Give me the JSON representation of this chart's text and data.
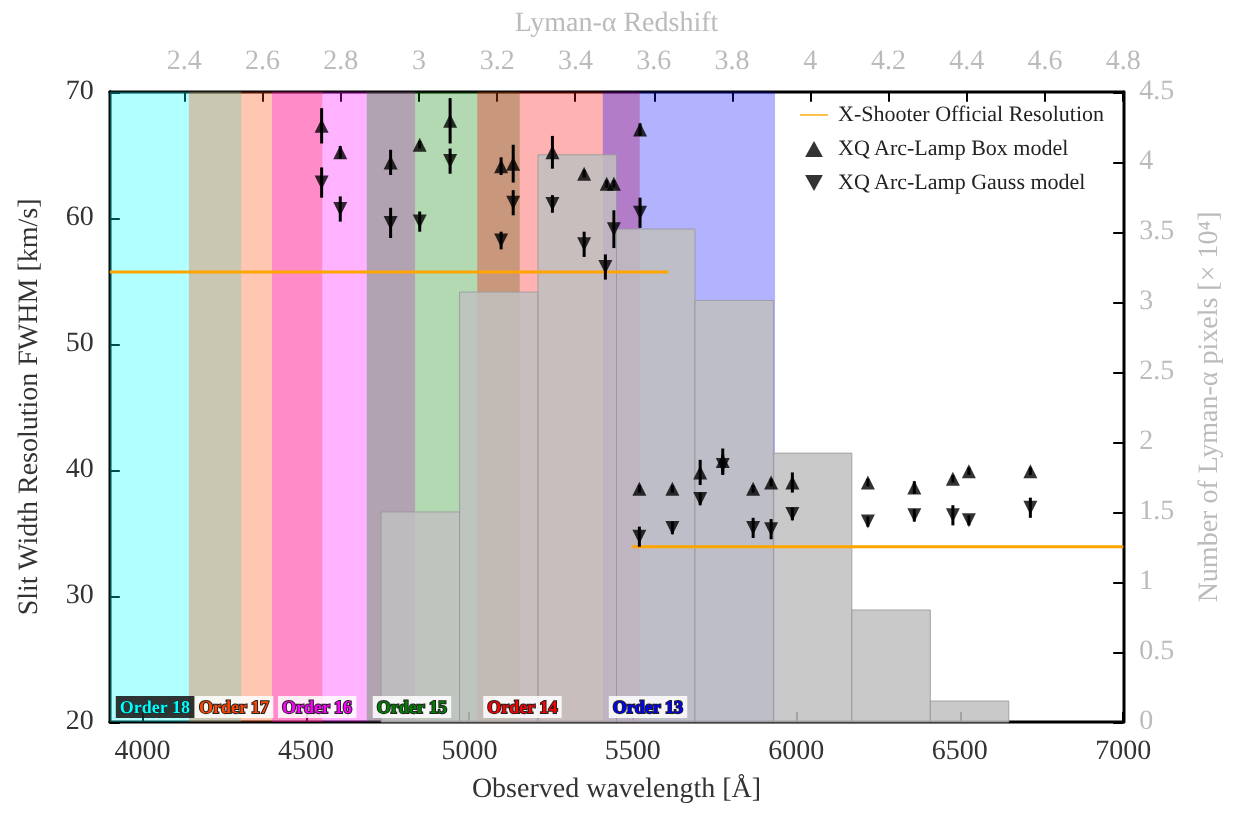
{
  "chart_data": {
    "type": "scatter",
    "xlabel": "Observed wavelength [Å]",
    "ylabel": "Slit Width Resolution FWHM [km/s]",
    "y2label": "Number of Lyman-α pixels [× 10⁴]",
    "x2label": "Lyman-α Redshift",
    "xlim": [
      3900,
      7000
    ],
    "xticks": [
      4000,
      4500,
      5000,
      5500,
      6000,
      6500,
      7000
    ],
    "ylim": [
      20,
      70
    ],
    "yticks": [
      20,
      30,
      40,
      50,
      60,
      70
    ],
    "y2lim": [
      0,
      4.5
    ],
    "y2ticks": [
      0,
      0.5,
      1,
      1.5,
      2,
      2.5,
      3,
      3.5,
      4,
      4.5
    ],
    "x2lim": [
      2.21,
      4.8
    ],
    "x2ticks": [
      2.4,
      2.6,
      2.8,
      3,
      3.2,
      3.4,
      3.6,
      3.8,
      4,
      4.2,
      4.4,
      4.6,
      4.8
    ],
    "legend": "top right",
    "grid": false,
    "bands": [
      {
        "axis": "x",
        "from": 3900,
        "to": 4302,
        "label": "Order 18",
        "color": "#00ffff"
      },
      {
        "axis": "x",
        "from": 4142,
        "to": 4550,
        "label": "Order 17",
        "color": "#ff4500"
      },
      {
        "axis": "x",
        "from": 4396,
        "to": 4834,
        "label": "Order 16",
        "color": "#ff00ff"
      },
      {
        "axis": "x",
        "from": 4686,
        "to": 5154,
        "label": "Order 15",
        "color": "#008000"
      },
      {
        "axis": "x",
        "from": 5024,
        "to": 5521,
        "label": "Order 14",
        "color": "#ff0000"
      },
      {
        "axis": "x",
        "from": 5408,
        "to": 5935,
        "label": "Order 13",
        "color": "#0000ff"
      }
    ],
    "series": [
      {
        "type": "histogram",
        "axis": "y2",
        "color": "#bfbfbf",
        "bins": [
          4730,
          4970,
          5210,
          5450,
          5690,
          5930,
          6170,
          6410,
          6650
        ],
        "values": [
          1.5,
          3.07,
          4.05,
          3.52,
          3.01,
          1.92,
          0.8,
          0.15
        ]
      },
      {
        "type": "line",
        "name": "X-Shooter Official Resolution",
        "color": "#ffa500",
        "line_style": "solid",
        "x": [
          3900,
          5609,
          5550,
          5497,
          7000
        ],
        "values": [
          55.7,
          55.7,
          null,
          33.9,
          33.9
        ]
      },
      {
        "type": "scatter",
        "name": "XQ Arc-Lamp Box model",
        "color": "#000000",
        "marker": "triangle",
        "x": [
          4548,
          4605,
          4759,
          4848,
          4941,
          5097,
          5134,
          5254,
          5351,
          5420,
          5442,
          5520,
          5522,
          5621,
          5706,
          5775,
          5868,
          5923,
          5988,
          6219,
          6361,
          6479,
          6528,
          6716
        ],
        "values": [
          67.3,
          65.2,
          64.4,
          65.8,
          67.7,
          64.1,
          64.3,
          65.2,
          63.5,
          62.7,
          62.7,
          38.5,
          67,
          38.5,
          39.8,
          40.7,
          38.5,
          39,
          39,
          39,
          38.6,
          39.3,
          39.9,
          39.9
        ],
        "errors": [
          1.4,
          0.5,
          1,
          0.3,
          1.8,
          0.7,
          1.5,
          1.3,
          0.3,
          0.3,
          0.3,
          0.3,
          0.5,
          0.3,
          1,
          1,
          0.3,
          0.3,
          0.8,
          0.3,
          0.5,
          0.3,
          0.3,
          0.3
        ]
      },
      {
        "type": "scatter",
        "name": "XQ Arc-Lamp Gauss model",
        "color": "#000000",
        "marker": "triangle-down",
        "x": [
          4548,
          4605,
          4759,
          4848,
          4941,
          5097,
          5134,
          5254,
          5351,
          5416,
          5442,
          5520,
          5522,
          5621,
          5706,
          5775,
          5868,
          5923,
          5988,
          6219,
          6361,
          6479,
          6528,
          6716
        ],
        "values": [
          62.8,
          60.7,
          59.6,
          59.7,
          64.5,
          58.2,
          61.2,
          61.1,
          57.9,
          56.1,
          59.1,
          34.7,
          60.4,
          35.4,
          37.7,
          40.4,
          35.4,
          35.3,
          36.5,
          35.9,
          36.4,
          36.4,
          36,
          37
        ],
        "errors": [
          1.2,
          1,
          1.2,
          0.8,
          1,
          0.7,
          1,
          0.7,
          1,
          1,
          1.5,
          0.8,
          1.2,
          0.5,
          0.5,
          0.8,
          0.8,
          0.8,
          0.5,
          0.4,
          0.5,
          0.8,
          0.4,
          0.8
        ]
      }
    ]
  }
}
